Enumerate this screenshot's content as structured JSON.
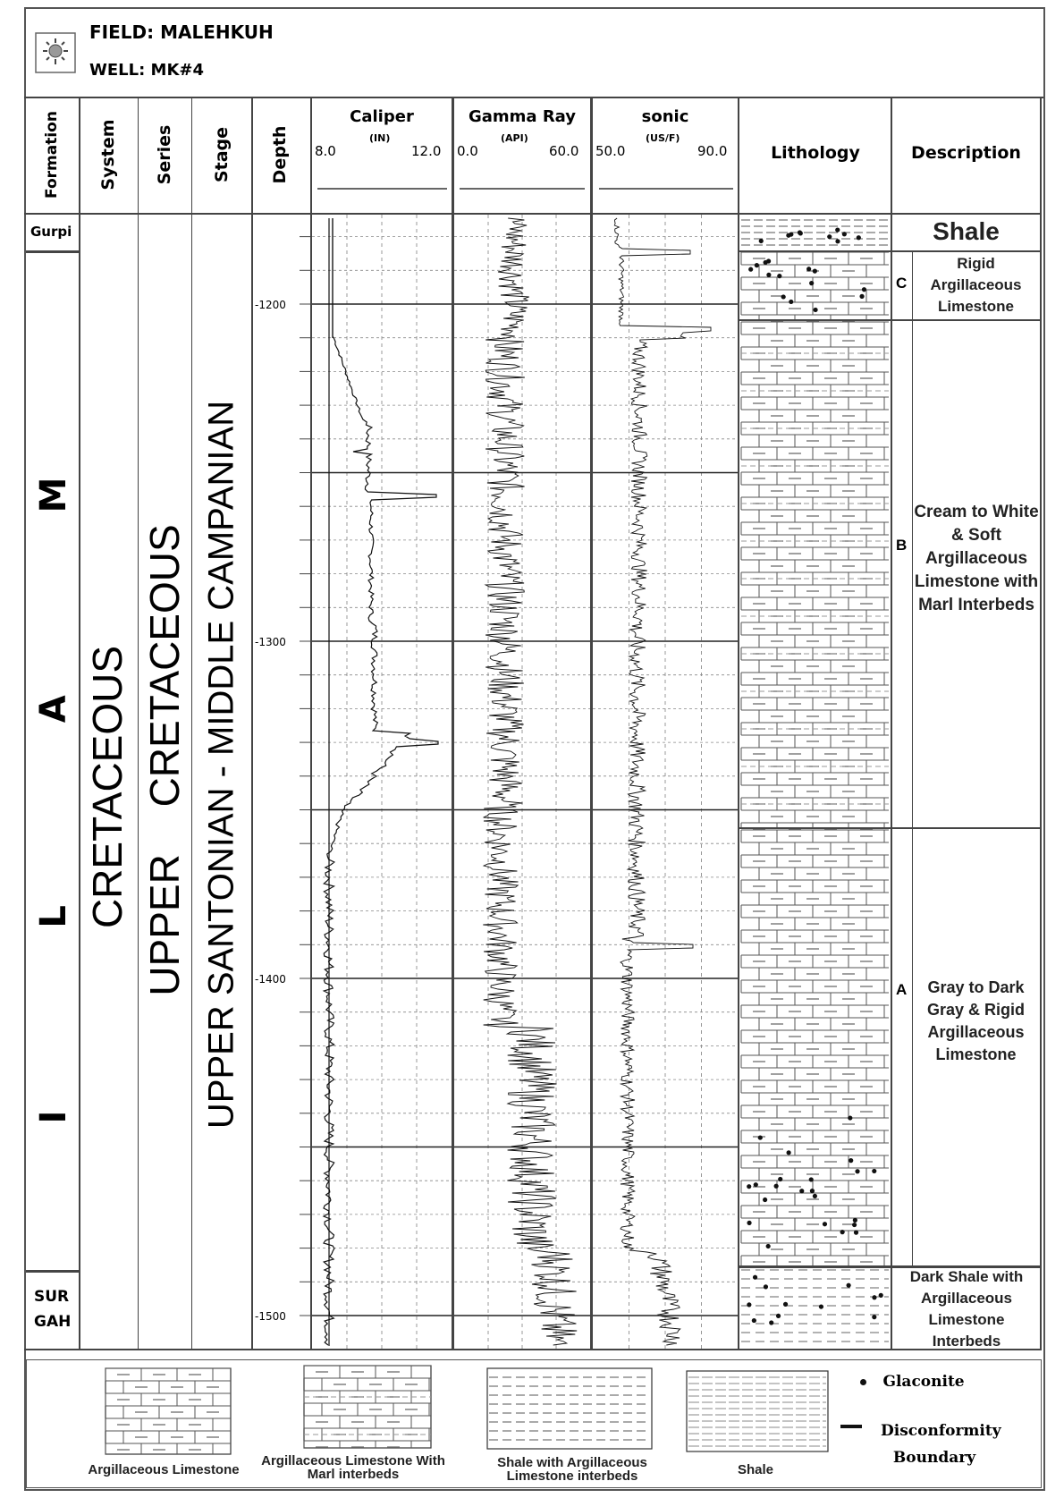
{
  "header": {
    "field": "FIELD: MALEHKUH",
    "well": "WELL: MK#4",
    "logo_icon": "sun-well-icon"
  },
  "columns": {
    "formation": "Formation",
    "system": "System",
    "series": "Series",
    "stage": "Stage",
    "depth": "Depth",
    "lithology": "Lithology",
    "description": "Description"
  },
  "logs": {
    "caliper": {
      "name": "Caliper",
      "unit": "(IN)",
      "min": "8.0",
      "max": "12.0"
    },
    "gamma": {
      "name": "Gamma Ray",
      "unit": "(API)",
      "min": "0.0",
      "max": "60.0"
    },
    "sonic": {
      "name": "sonic",
      "unit": "(US/F)",
      "min": "50.0",
      "max": "90.0"
    }
  },
  "formations": {
    "gurpi": "Gurpi",
    "ilam": "I L A M",
    "surgah_1": "SUR",
    "surgah_2": "GAH"
  },
  "system": "CRETACEOUS",
  "series": "UPPER CRETACEOUS",
  "stage": "UPPER SANTONIAN - MIDDLE CAMPANIAN",
  "depth_labels": [
    "-1200",
    "-1300",
    "-1400",
    "-1500"
  ],
  "units": {
    "C": "C",
    "B": "B",
    "A": "A"
  },
  "descriptions": {
    "shale": "Shale",
    "c": "Rigid Argillaceous Limestone",
    "b": "Cream to White & Soft Argillaceous Limestone with Marl Interbeds",
    "a": "Gray to Dark Gray & Rigid Argillaceous Limestone",
    "surgah": "Dark Shale with Argillaceous Limestone Interbeds"
  },
  "legend": {
    "arg_ls": "Argillaceous Limestone",
    "arg_ls_marl": "Argillaceous Limestone With Marl interbeds",
    "shale_arg": "Shale with Argillaceous Limestone interbeds",
    "shale": "Shale",
    "glauconite": "Glaconite",
    "disconformity": "Disconformity Boundary"
  }
}
